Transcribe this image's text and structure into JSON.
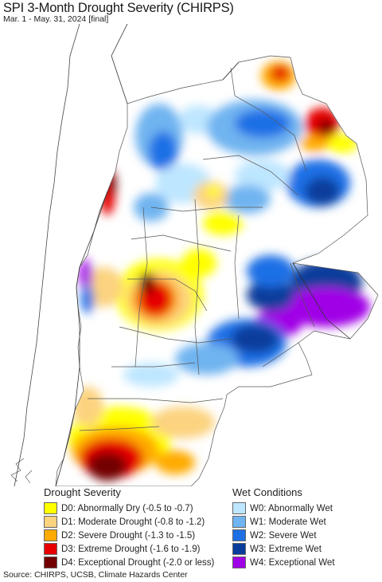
{
  "header": {
    "title": "SPI 3-Month Drought Severity (CHIRPS)",
    "subtitle": "Mar. 1 - May. 31, 2024 [final]"
  },
  "legend": {
    "drought": {
      "heading": "Drought Severity",
      "items": [
        {
          "label": "D0: Abnormally Dry (-0.5 to -0.7)",
          "color": "#ffff00"
        },
        {
          "label": "D1: Moderate Drought (-0.8 to -1.2)",
          "color": "#fcd37f"
        },
        {
          "label": "D2: Severe Drought (-1.3 to -1.5)",
          "color": "#ffaa00"
        },
        {
          "label": "D3: Extreme Drought (-1.6 to -1.9)",
          "color": "#e60000"
        },
        {
          "label": "D4: Exceptional Drought (-2.0 or less)",
          "color": "#730000"
        }
      ]
    },
    "wet": {
      "heading": "Wet Conditions",
      "items": [
        {
          "label": "W0: Abnormally Wet",
          "color": "#bde6ff"
        },
        {
          "label": "W1: Moderate Wet",
          "color": "#6fb4f0"
        },
        {
          "label": "W2: Severe Wet",
          "color": "#1e6fe6"
        },
        {
          "label": "W3: Extreme Wet",
          "color": "#0a3c9c"
        },
        {
          "label": "W4: Exceptional Wet",
          "color": "#a000e6"
        }
      ]
    }
  },
  "footer": {
    "source": "Source: CHIRPS, UCSB, Climate Hazards Center"
  }
}
